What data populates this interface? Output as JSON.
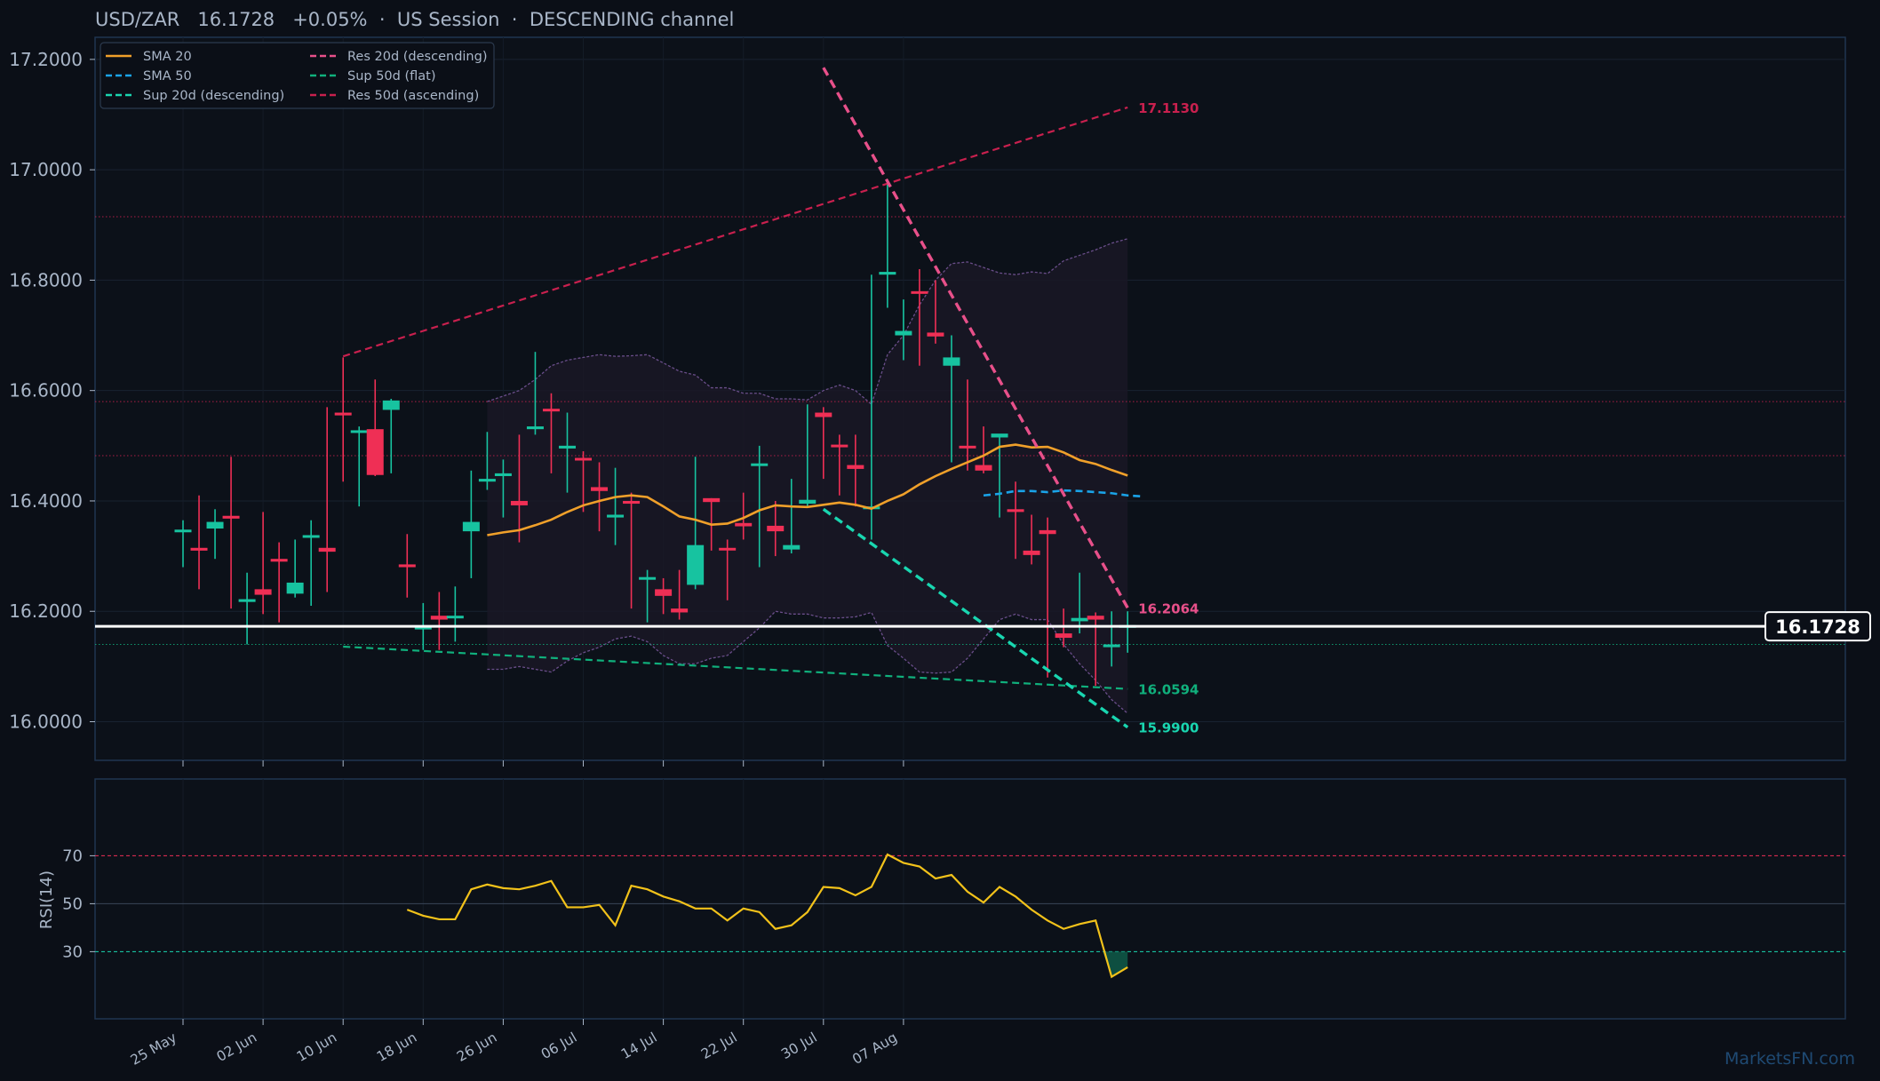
{
  "header": {
    "symbol": "USD/ZAR",
    "price": "16.1728",
    "change": "+0.05%",
    "session": "US Session",
    "channel": "DESCENDING channel",
    "separator": "·"
  },
  "watermark": "MarketsFN.com",
  "colors": {
    "background": "#0b0f17",
    "panel": "#0c1119",
    "border": "#1f3550",
    "axis_text": "#a9b6c8",
    "bull": "#17c3a0",
    "bear": "#ef2f55",
    "sma20": "#f0a02a",
    "sma50": "#1aa3e8",
    "sup20": "#19d6b0",
    "sup50": "#10b07c",
    "res20": "#e8508a",
    "res50": "#c8204e",
    "bollinger": "#6a4e8a",
    "rsi": "#f2c21a",
    "last_price": "#ffffff"
  },
  "chart_data": [
    {
      "type": "candlestick",
      "title": "USD/ZAR 16.1728 +0.05% · US Session · DESCENDING channel",
      "ylim": [
        15.93,
        17.24
      ],
      "y_ticks": [
        "16.0000",
        "16.2000",
        "16.4000",
        "16.6000",
        "16.8000",
        "17.0000",
        "17.2000"
      ],
      "x_ticks": [
        "25 May",
        "02 Jun",
        "10 Jun",
        "18 Jun",
        "26 Jun",
        "06 Jul",
        "14 Jul",
        "22 Jul",
        "30 Jul",
        "07 Aug"
      ],
      "x_tick_index": [
        0,
        5,
        10,
        15,
        20,
        25,
        30,
        35,
        40,
        45
      ],
      "legend": {
        "position": "top-left",
        "entries": [
          {
            "label": "SMA 20",
            "style": "solid",
            "color": "#f0a02a"
          },
          {
            "label": "SMA 50",
            "style": "dashed",
            "color": "#1aa3e8"
          },
          {
            "label": "Sup 20d (descending)",
            "style": "dashed",
            "color": "#19d6b0"
          },
          {
            "label": "Res 20d (descending)",
            "style": "dashed",
            "color": "#e8508a"
          },
          {
            "label": "Sup 50d (flat)",
            "style": "dashed",
            "color": "#10b07c"
          },
          {
            "label": "Res 50d (ascending)",
            "style": "dashed",
            "color": "#c8204e"
          }
        ]
      },
      "candles": [
        {
          "o": 16.345,
          "h": 16.365,
          "l": 16.28,
          "c": 16.348
        },
        {
          "o": 16.315,
          "h": 16.41,
          "l": 16.24,
          "c": 16.31
        },
        {
          "o": 16.35,
          "h": 16.385,
          "l": 16.295,
          "c": 16.362
        },
        {
          "o": 16.373,
          "h": 16.48,
          "l": 16.205,
          "c": 16.368
        },
        {
          "o": 16.217,
          "h": 16.27,
          "l": 16.14,
          "c": 16.222
        },
        {
          "o": 16.24,
          "h": 16.38,
          "l": 16.195,
          "c": 16.23
        },
        {
          "o": 16.295,
          "h": 16.325,
          "l": 16.18,
          "c": 16.29
        },
        {
          "o": 16.232,
          "h": 16.33,
          "l": 16.225,
          "c": 16.252
        },
        {
          "o": 16.335,
          "h": 16.365,
          "l": 16.21,
          "c": 16.338
        },
        {
          "o": 16.315,
          "h": 16.57,
          "l": 16.235,
          "c": 16.308
        },
        {
          "o": 16.56,
          "h": 16.66,
          "l": 16.435,
          "c": 16.555
        },
        {
          "o": 16.525,
          "h": 16.535,
          "l": 16.39,
          "c": 16.528
        },
        {
          "o": 16.53,
          "h": 16.62,
          "l": 16.445,
          "c": 16.447
        },
        {
          "o": 16.565,
          "h": 16.585,
          "l": 16.45,
          "c": 16.582
        },
        {
          "o": 16.285,
          "h": 16.34,
          "l": 16.225,
          "c": 16.28
        },
        {
          "o": 16.168,
          "h": 16.215,
          "l": 16.13,
          "c": 16.172
        },
        {
          "o": 16.192,
          "h": 16.235,
          "l": 16.13,
          "c": 16.185
        },
        {
          "o": 16.19,
          "h": 16.245,
          "l": 16.145,
          "c": 16.192
        },
        {
          "o": 16.345,
          "h": 16.455,
          "l": 16.26,
          "c": 16.362
        },
        {
          "o": 16.435,
          "h": 16.525,
          "l": 16.42,
          "c": 16.44
        },
        {
          "o": 16.445,
          "h": 16.475,
          "l": 16.37,
          "c": 16.45
        },
        {
          "o": 16.4,
          "h": 16.52,
          "l": 16.325,
          "c": 16.392
        },
        {
          "o": 16.53,
          "h": 16.67,
          "l": 16.52,
          "c": 16.535
        },
        {
          "o": 16.567,
          "h": 16.595,
          "l": 16.45,
          "c": 16.563
        },
        {
          "o": 16.495,
          "h": 16.56,
          "l": 16.415,
          "c": 16.5
        },
        {
          "o": 16.478,
          "h": 16.49,
          "l": 16.38,
          "c": 16.474
        },
        {
          "o": 16.425,
          "h": 16.47,
          "l": 16.345,
          "c": 16.418
        },
        {
          "o": 16.37,
          "h": 16.46,
          "l": 16.32,
          "c": 16.375
        },
        {
          "o": 16.4,
          "h": 16.415,
          "l": 16.205,
          "c": 16.395
        },
        {
          "o": 16.258,
          "h": 16.275,
          "l": 16.18,
          "c": 16.262
        },
        {
          "o": 16.24,
          "h": 16.26,
          "l": 16.195,
          "c": 16.228
        },
        {
          "o": 16.205,
          "h": 16.275,
          "l": 16.185,
          "c": 16.198
        },
        {
          "o": 16.248,
          "h": 16.48,
          "l": 16.24,
          "c": 16.32
        },
        {
          "o": 16.405,
          "h": 16.405,
          "l": 16.31,
          "c": 16.398
        },
        {
          "o": 16.315,
          "h": 16.33,
          "l": 16.22,
          "c": 16.312
        },
        {
          "o": 16.36,
          "h": 16.415,
          "l": 16.33,
          "c": 16.354
        },
        {
          "o": 16.465,
          "h": 16.5,
          "l": 16.28,
          "c": 16.468
        },
        {
          "o": 16.355,
          "h": 16.4,
          "l": 16.3,
          "c": 16.345
        },
        {
          "o": 16.312,
          "h": 16.44,
          "l": 16.305,
          "c": 16.32
        },
        {
          "o": 16.395,
          "h": 16.575,
          "l": 16.39,
          "c": 16.402
        },
        {
          "o": 16.56,
          "h": 16.57,
          "l": 16.44,
          "c": 16.552
        },
        {
          "o": 16.502,
          "h": 16.52,
          "l": 16.41,
          "c": 16.498
        },
        {
          "o": 16.465,
          "h": 16.52,
          "l": 16.39,
          "c": 16.458
        },
        {
          "o": 16.385,
          "h": 16.81,
          "l": 16.33,
          "c": 16.39
        },
        {
          "o": 16.81,
          "h": 16.98,
          "l": 16.75,
          "c": 16.815
        },
        {
          "o": 16.7,
          "h": 16.765,
          "l": 16.655,
          "c": 16.708
        },
        {
          "o": 16.78,
          "h": 16.82,
          "l": 16.645,
          "c": 16.776
        },
        {
          "o": 16.705,
          "h": 16.8,
          "l": 16.685,
          "c": 16.698
        },
        {
          "o": 16.645,
          "h": 16.7,
          "l": 16.47,
          "c": 16.66
        },
        {
          "o": 16.5,
          "h": 16.62,
          "l": 16.455,
          "c": 16.496
        },
        {
          "o": 16.465,
          "h": 16.535,
          "l": 16.45,
          "c": 16.455
        },
        {
          "o": 16.515,
          "h": 16.52,
          "l": 16.37,
          "c": 16.522
        },
        {
          "o": 16.385,
          "h": 16.435,
          "l": 16.295,
          "c": 16.38
        },
        {
          "o": 16.31,
          "h": 16.375,
          "l": 16.285,
          "c": 16.302
        },
        {
          "o": 16.347,
          "h": 16.37,
          "l": 16.08,
          "c": 16.34
        },
        {
          "o": 16.16,
          "h": 16.205,
          "l": 16.135,
          "c": 16.152
        },
        {
          "o": 16.182,
          "h": 16.27,
          "l": 16.16,
          "c": 16.188
        },
        {
          "o": 16.192,
          "h": 16.198,
          "l": 16.065,
          "c": 16.185
        },
        {
          "o": 16.135,
          "h": 16.2,
          "l": 16.1,
          "c": 16.14
        },
        {
          "o": 16.172,
          "h": 16.2,
          "l": 16.125,
          "c": 16.175
        }
      ],
      "sma20": {
        "start_index": 19,
        "values": [
          16.338,
          16.343,
          16.347,
          16.356,
          16.366,
          16.38,
          16.392,
          16.4,
          16.407,
          16.41,
          16.407,
          16.39,
          16.372,
          16.366,
          16.357,
          16.359,
          16.369,
          16.383,
          16.392,
          16.39,
          16.389,
          16.393,
          16.397,
          16.393,
          16.386,
          16.4,
          16.412,
          16.43,
          16.445,
          16.458,
          16.47,
          16.482,
          16.498,
          16.502,
          16.497,
          16.498,
          16.488,
          16.474,
          16.467,
          16.456,
          16.446
        ]
      },
      "sma50": {
        "start_index": 50,
        "values": [
          16.41,
          16.413,
          16.418,
          16.418,
          16.416,
          16.419,
          16.418,
          16.416,
          16.414,
          16.41,
          16.408
        ]
      },
      "bollinger": {
        "start_index": 19,
        "upper": [
          16.58,
          16.59,
          16.6,
          16.62,
          16.645,
          16.655,
          16.66,
          16.665,
          16.662,
          16.663,
          16.665,
          16.65,
          16.635,
          16.628,
          16.605,
          16.605,
          16.595,
          16.595,
          16.585,
          16.585,
          16.583,
          16.6,
          16.61,
          16.6,
          16.575,
          16.665,
          16.7,
          16.755,
          16.8,
          16.83,
          16.833,
          16.823,
          16.813,
          16.81,
          16.815,
          16.812,
          16.835,
          16.845,
          16.855,
          16.867,
          16.875
        ],
        "lower": [
          16.095,
          16.095,
          16.1,
          16.095,
          16.09,
          16.11,
          16.125,
          16.135,
          16.15,
          16.155,
          16.145,
          16.12,
          16.105,
          16.105,
          16.115,
          16.12,
          16.145,
          16.17,
          16.2,
          16.195,
          16.195,
          16.188,
          16.188,
          16.19,
          16.198,
          16.138,
          16.115,
          16.09,
          16.088,
          16.09,
          16.115,
          16.15,
          16.185,
          16.195,
          16.185,
          16.185,
          16.14,
          16.105,
          16.075,
          16.04,
          16.015
        ]
      },
      "trendlines": [
        {
          "name": "Res 50d (ascending)",
          "from": [
            10,
            16.662
          ],
          "to": [
            59,
            17.113
          ],
          "label": "17.1130"
        },
        {
          "name": "Sup 50d (flat)",
          "from": [
            10,
            16.136
          ],
          "to": [
            59,
            16.0594
          ],
          "label": "16.0594"
        },
        {
          "name": "Res 20d (descending)",
          "from": [
            40,
            17.185
          ],
          "to": [
            59,
            16.2064
          ],
          "label": "16.2064"
        },
        {
          "name": "Sup 20d (descending)",
          "from": [
            40,
            16.385
          ],
          "to": [
            59,
            15.99
          ],
          "label": "15.9900"
        }
      ],
      "horizontal_levels": [
        {
          "value": 16.915,
          "color": "#c8204e"
        },
        {
          "value": 16.58,
          "color": "#c8204e"
        },
        {
          "value": 16.482,
          "color": "#c8204e"
        },
        {
          "value": 16.14,
          "color": "#10b07c"
        }
      ],
      "last_price": {
        "value": 16.1728,
        "label": "16.1728"
      }
    },
    {
      "type": "line",
      "ylabel": "RSI(14)",
      "ylim": [
        2,
        102
      ],
      "y_ticks": [
        "30",
        "50",
        "70"
      ],
      "levels": [
        30,
        50,
        70
      ],
      "start_index": 14,
      "values": [
        47.5,
        45,
        43.5,
        43.5,
        56,
        58,
        56.5,
        56,
        57.5,
        59.5,
        48.5,
        48.5,
        49.5,
        41,
        57.5,
        56,
        53,
        51,
        48,
        48,
        43,
        48,
        46.5,
        39.5,
        41,
        46.5,
        57,
        56.5,
        53.5,
        57,
        70.5,
        67,
        65.5,
        60.5,
        62,
        55,
        50.5,
        57,
        53,
        47.5,
        43,
        39.5,
        41.5,
        43,
        19.5,
        23.5
      ]
    }
  ]
}
